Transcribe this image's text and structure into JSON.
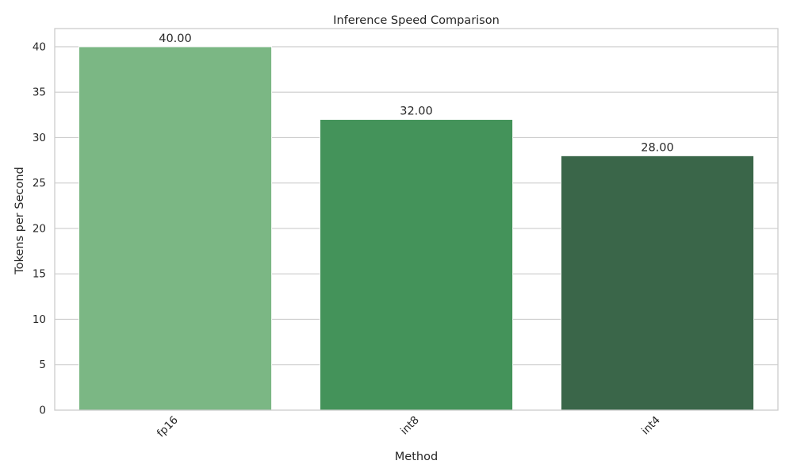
{
  "chart_data": {
    "type": "bar",
    "title": "Inference Speed Comparison",
    "xlabel": "Method",
    "ylabel": "Tokens per Second",
    "categories": [
      "fp16",
      "int8",
      "int4"
    ],
    "values": [
      40.0,
      32.0,
      28.0
    ],
    "value_labels": [
      "40.00",
      "32.00",
      "28.00"
    ],
    "colors": [
      "#7bb784",
      "#44935a",
      "#3a6649"
    ],
    "ylim": [
      0,
      42
    ],
    "yticks": [
      0,
      5,
      10,
      15,
      20,
      25,
      30,
      35,
      40
    ],
    "ytick_labels": [
      "0",
      "5",
      "10",
      "15",
      "20",
      "25",
      "30",
      "35",
      "40"
    ],
    "grid": "horizontal",
    "xtick_rotation_deg": 45
  }
}
